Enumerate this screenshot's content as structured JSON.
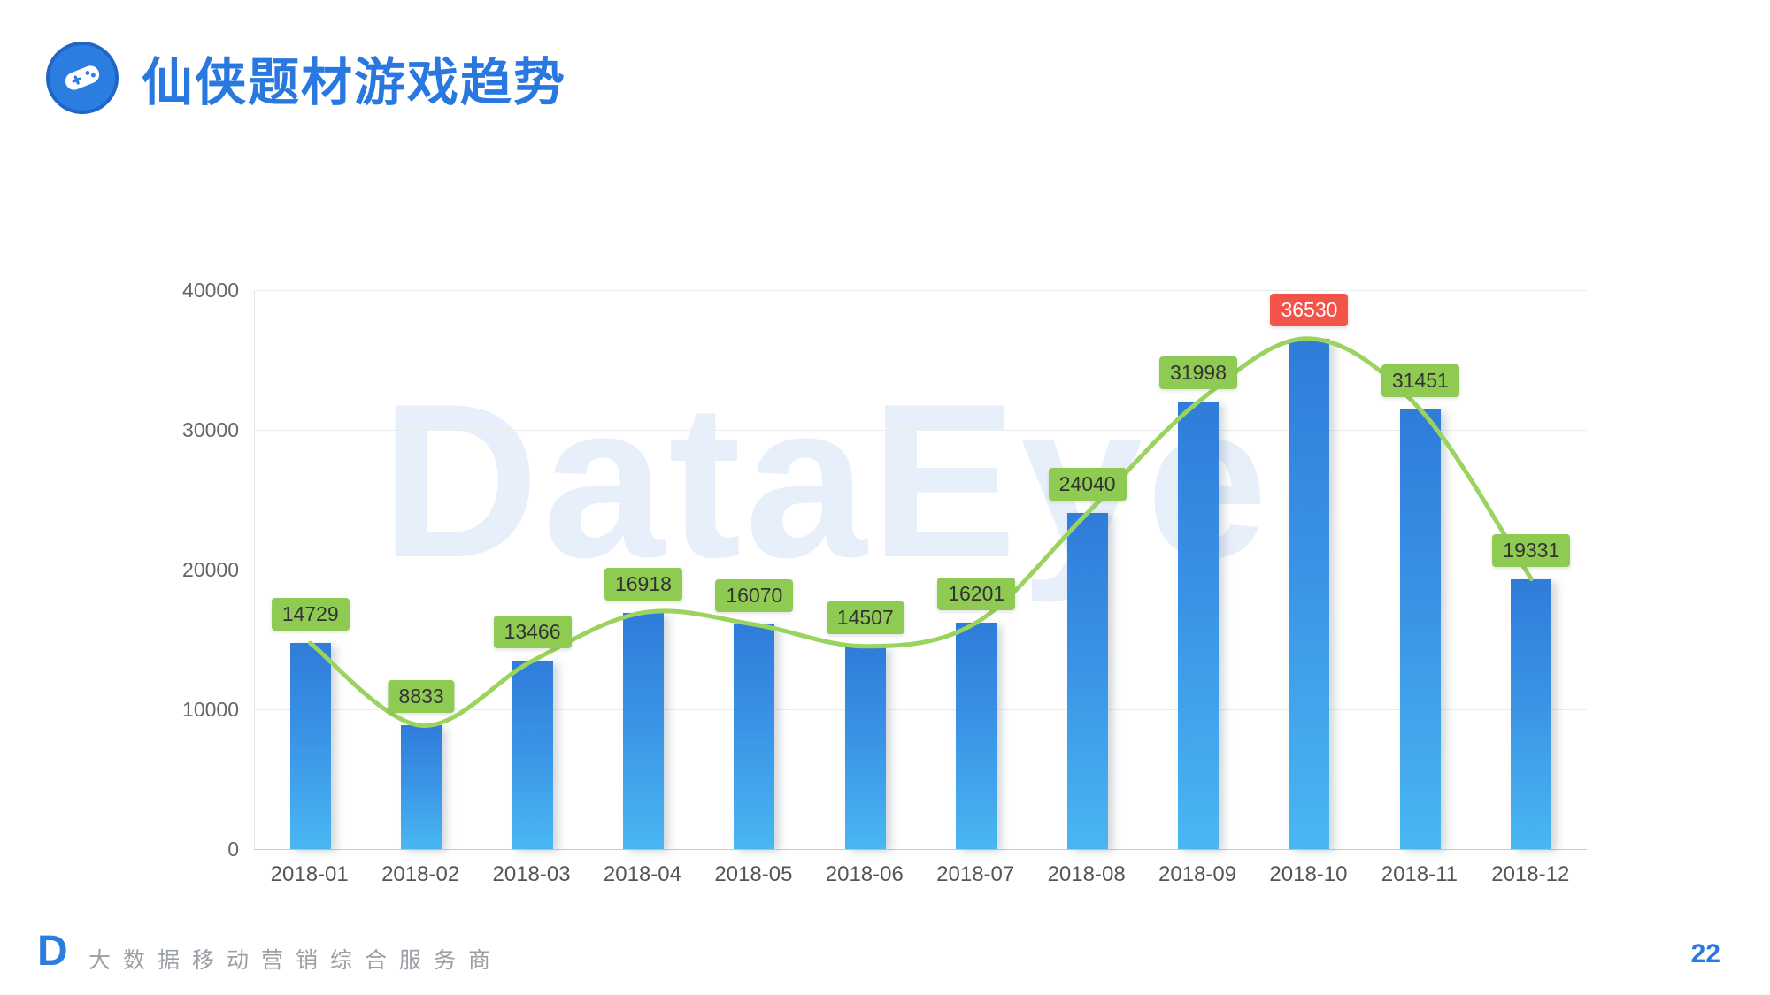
{
  "header": {
    "title": "仙侠题材游戏趋势"
  },
  "watermark": {
    "text": "DataEye"
  },
  "chart_data": {
    "type": "bar",
    "title": "仙侠题材游戏趋势",
    "categories": [
      "2018-01",
      "2018-02",
      "2018-03",
      "2018-04",
      "2018-05",
      "2018-06",
      "2018-07",
      "2018-08",
      "2018-09",
      "2018-10",
      "2018-11",
      "2018-12"
    ],
    "values": [
      14729,
      8833,
      13466,
      16918,
      16070,
      14507,
      16201,
      24040,
      31998,
      36530,
      31451,
      19331
    ],
    "yticks": [
      0,
      10000,
      20000,
      30000,
      40000
    ],
    "ylim": [
      0,
      40000
    ],
    "highlight_index": 9,
    "overlay": "smooth trend line through bar tops",
    "legend": "none",
    "grid": "horizontal",
    "colors": {
      "bar_top": "#2f7cd9",
      "bar_bottom": "#49b7f2",
      "line": "#9ad45f",
      "label_bg": "#8fcb52",
      "label_bg_highlight": "#f4534a"
    }
  },
  "footer": {
    "tagline": "大数据移动营销综合服务商",
    "page_number": "22"
  }
}
